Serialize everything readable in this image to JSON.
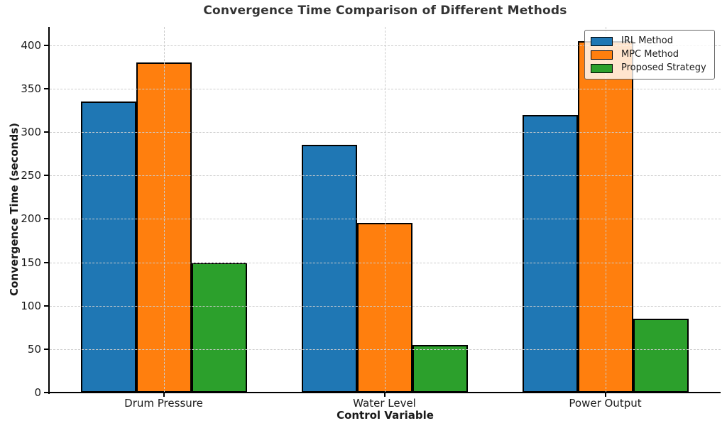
{
  "chart_data": {
    "type": "bar",
    "title": "Convergence Time Comparison of Different Methods",
    "xlabel": "Control Variable",
    "ylabel": "Convergence Time (seconds)",
    "categories": [
      "Drum Pressure",
      "Water Level",
      "Power Output"
    ],
    "series": [
      {
        "name": "IRL Method",
        "color": "#1f77b4",
        "values": [
          335,
          285,
          320
        ]
      },
      {
        "name": "MPC Method",
        "color": "#ff7f0e",
        "values": [
          380,
          195,
          405
        ]
      },
      {
        "name": "Proposed Strategy",
        "color": "#2ca02c",
        "values": [
          150,
          55,
          85
        ]
      }
    ],
    "ylim": [
      0,
      421
    ],
    "yticks": [
      0,
      50,
      100,
      150,
      200,
      250,
      300,
      350,
      400
    ],
    "grid": true,
    "grid_style": "dashed",
    "legend_position": "upper right",
    "bar_edge_color": "#000000",
    "grid_color": "#cccccc",
    "axis_color": "#000000",
    "text_color": "#1a1a1a",
    "title_color": "#333333"
  }
}
